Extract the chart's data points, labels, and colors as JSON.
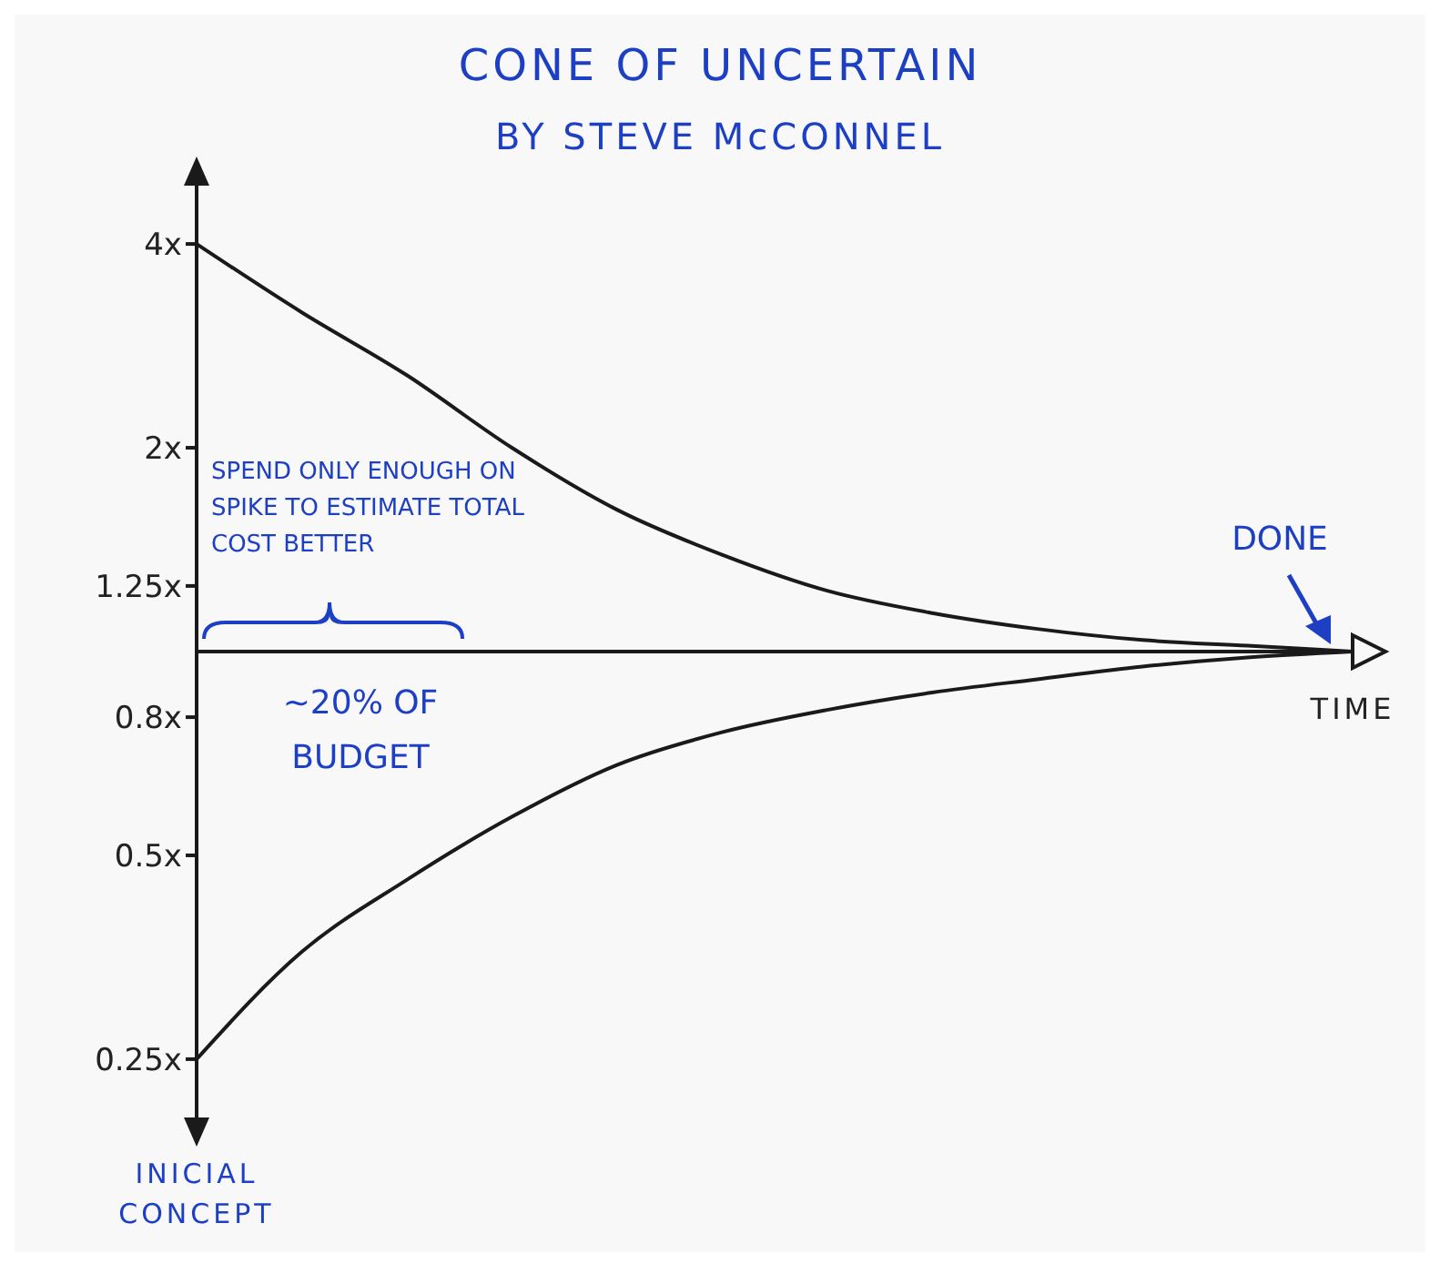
{
  "chart_data": {
    "type": "line",
    "title": "CONE OF UNCERTAIN",
    "subtitle": "BY STEVE McCONNEL",
    "xlabel": "TIME",
    "categories": [
      null,
      null,
      null,
      null,
      null,
      null,
      null,
      null,
      null,
      null,
      null,
      null
    ],
    "series": [
      {
        "color": "#1a1a1a",
        "values": [
          4,
          3.17,
          2.56,
          2.0,
          1.62,
          1.39,
          1.23,
          1.14,
          1.08,
          1.04,
          1.02,
          1
        ]
      },
      {
        "color": "#1a1a1a",
        "values": [
          0.25,
          0.36,
          0.46,
          0.57,
          0.68,
          0.76,
          0.82,
          0.87,
          0.91,
          0.95,
          0.98,
          1
        ]
      }
    ],
    "log": "y",
    "ylim": [
      0.2,
      5
    ],
    "yticks": [
      {
        "value": 4,
        "label": "4x"
      },
      {
        "value": 2,
        "label": "2x"
      },
      {
        "value": 1.25,
        "label": "1.25x"
      },
      {
        "value": 0.8,
        "label": "0.8x"
      },
      {
        "value": 0.5,
        "label": "0.5x"
      },
      {
        "value": 0.25,
        "label": "0.25x"
      }
    ],
    "ref_lines": [
      {
        "axis": "y",
        "value": 1,
        "color": "#1a1a1a"
      }
    ],
    "tick_labels": "y",
    "marker": "none",
    "annotations": [
      "SPEND ONLY ENOUGH ON SPIKE TO ESTIMATE TOTAL COST BETTER",
      "∼20% OF BUDGET",
      {
        "text": "DONE",
        "y": 1
      },
      "INICIAL CONCEPT"
    ]
  }
}
